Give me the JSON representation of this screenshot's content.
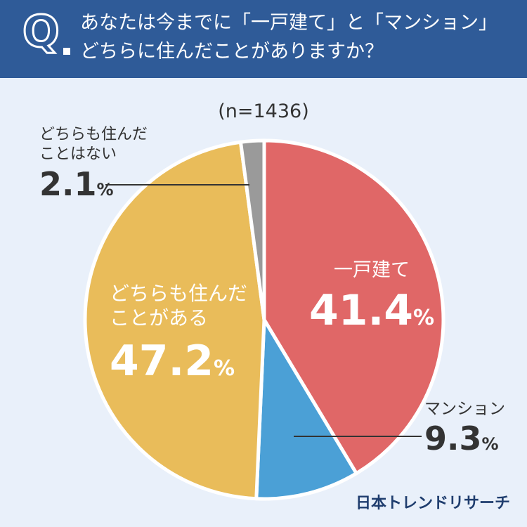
{
  "header": {
    "q_letter": "Q",
    "question_line1": "あなたは今までに「一戸建て」と「マンション」",
    "question_line2": "どちらに住んだことがありますか？"
  },
  "sample_size": "(n=1436)",
  "brand": "日本トレンドリサーチ",
  "chart_data": {
    "type": "pie",
    "title": "",
    "slices": [
      {
        "label": "一戸建て",
        "value": 41.4,
        "display": "41.4",
        "unit": "%",
        "color": "#e06767"
      },
      {
        "label": "マンション",
        "value": 9.3,
        "display": "9.3",
        "unit": "%",
        "color": "#4ba0d6"
      },
      {
        "label": "どちらも住んだことがある",
        "label_lines": [
          "どちらも住んだ",
          "ことがある"
        ],
        "value": 47.2,
        "display": "47.2",
        "unit": "%",
        "color": "#e9bc5a"
      },
      {
        "label": "どちらも住んだことはない",
        "label_lines": [
          "どちらも住んだ",
          "ことはない"
        ],
        "value": 2.1,
        "display": "2.1",
        "unit": "%",
        "color": "#9a9a9a"
      }
    ]
  }
}
